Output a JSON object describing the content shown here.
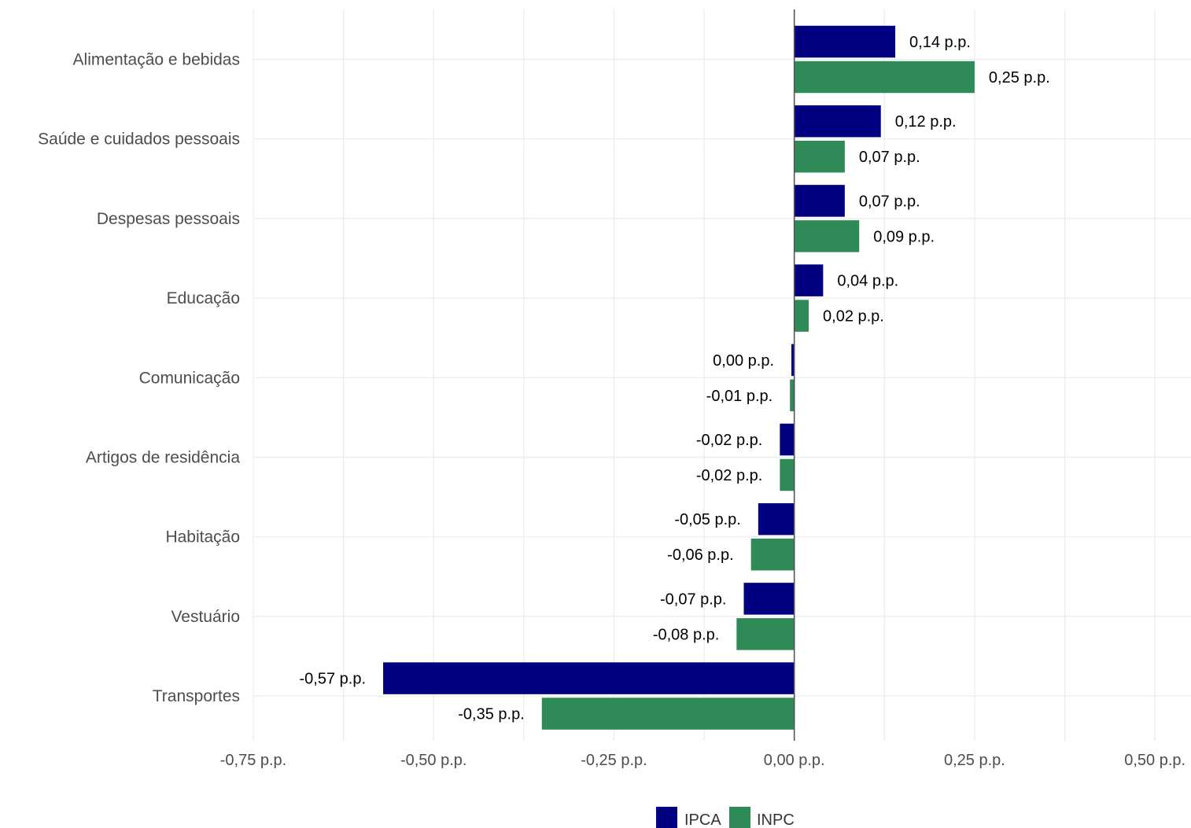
{
  "chart_data": {
    "type": "bar",
    "orientation": "horizontal",
    "categories": [
      "Alimentação e bebidas",
      "Saúde e cuidados pessoais",
      "Despesas pessoais",
      "Educação",
      "Comunicação",
      "Artigos de residência",
      "Habitação",
      "Vestuário",
      "Transportes"
    ],
    "series": [
      {
        "name": "IPCA",
        "color": "#000080",
        "values": [
          0.14,
          0.12,
          0.07,
          0.04,
          -0.004,
          -0.02,
          -0.05,
          -0.07,
          -0.57
        ],
        "labels": [
          "0,14 p.p.",
          "0,12 p.p.",
          "0,07 p.p.",
          "0,04 p.p.",
          "0,00 p.p.",
          "-0,02 p.p.",
          "-0,05 p.p.",
          "-0,07 p.p.",
          "-0,57 p.p."
        ]
      },
      {
        "name": "INPC",
        "color": "#2e8b57",
        "values": [
          0.25,
          0.07,
          0.09,
          0.02,
          -0.006,
          -0.02,
          -0.06,
          -0.08,
          -0.35
        ],
        "labels": [
          "0,25 p.p.",
          "0,07 p.p.",
          "0,09 p.p.",
          "0,02 p.p.",
          "-0,01 p.p.",
          "-0,02 p.p.",
          "-0,06 p.p.",
          "-0,08 p.p.",
          "-0,35 p.p."
        ]
      }
    ],
    "xlim": [
      -0.75,
      0.55
    ],
    "xticks": [
      -0.75,
      -0.5,
      -0.25,
      0,
      0.25,
      0.5
    ],
    "xtick_labels": [
      "-0,75 p.p.",
      "-0,50 p.p.",
      "-0,25 p.p.",
      "0,00 p.p.",
      "0,25 p.p.",
      "0,50 p.p."
    ],
    "grid": true,
    "legend_position": "bottom"
  }
}
